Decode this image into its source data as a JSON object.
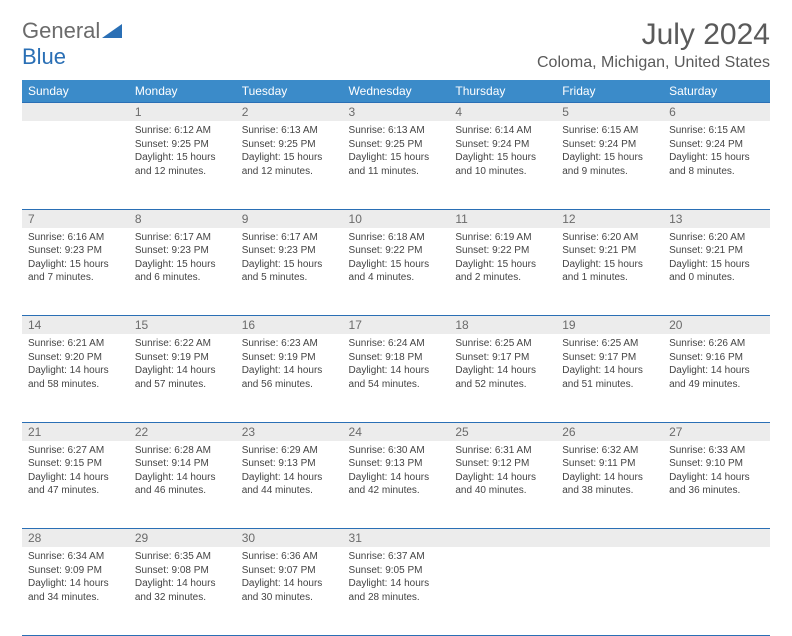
{
  "logo": {
    "gray": "General",
    "blue": "Blue"
  },
  "title": "July 2024",
  "location": "Coloma, Michigan, United States",
  "colors": {
    "header_bg": "#3b8bc9",
    "border": "#2a6fb5",
    "daynum_bg": "#ececec",
    "text": "#444444"
  },
  "day_headers": [
    "Sunday",
    "Monday",
    "Tuesday",
    "Wednesday",
    "Thursday",
    "Friday",
    "Saturday"
  ],
  "weeks": [
    {
      "nums": [
        "",
        "1",
        "2",
        "3",
        "4",
        "5",
        "6"
      ],
      "cells": [
        null,
        {
          "sunrise": "6:12 AM",
          "sunset": "9:25 PM",
          "dl_h": 15,
          "dl_m": 12
        },
        {
          "sunrise": "6:13 AM",
          "sunset": "9:25 PM",
          "dl_h": 15,
          "dl_m": 12
        },
        {
          "sunrise": "6:13 AM",
          "sunset": "9:25 PM",
          "dl_h": 15,
          "dl_m": 11
        },
        {
          "sunrise": "6:14 AM",
          "sunset": "9:24 PM",
          "dl_h": 15,
          "dl_m": 10
        },
        {
          "sunrise": "6:15 AM",
          "sunset": "9:24 PM",
          "dl_h": 15,
          "dl_m": 9
        },
        {
          "sunrise": "6:15 AM",
          "sunset": "9:24 PM",
          "dl_h": 15,
          "dl_m": 8
        }
      ]
    },
    {
      "nums": [
        "7",
        "8",
        "9",
        "10",
        "11",
        "12",
        "13"
      ],
      "cells": [
        {
          "sunrise": "6:16 AM",
          "sunset": "9:23 PM",
          "dl_h": 15,
          "dl_m": 7
        },
        {
          "sunrise": "6:17 AM",
          "sunset": "9:23 PM",
          "dl_h": 15,
          "dl_m": 6
        },
        {
          "sunrise": "6:17 AM",
          "sunset": "9:23 PM",
          "dl_h": 15,
          "dl_m": 5
        },
        {
          "sunrise": "6:18 AM",
          "sunset": "9:22 PM",
          "dl_h": 15,
          "dl_m": 4
        },
        {
          "sunrise": "6:19 AM",
          "sunset": "9:22 PM",
          "dl_h": 15,
          "dl_m": 2
        },
        {
          "sunrise": "6:20 AM",
          "sunset": "9:21 PM",
          "dl_h": 15,
          "dl_m": 1
        },
        {
          "sunrise": "6:20 AM",
          "sunset": "9:21 PM",
          "dl_h": 15,
          "dl_m": 0
        }
      ]
    },
    {
      "nums": [
        "14",
        "15",
        "16",
        "17",
        "18",
        "19",
        "20"
      ],
      "cells": [
        {
          "sunrise": "6:21 AM",
          "sunset": "9:20 PM",
          "dl_h": 14,
          "dl_m": 58
        },
        {
          "sunrise": "6:22 AM",
          "sunset": "9:19 PM",
          "dl_h": 14,
          "dl_m": 57
        },
        {
          "sunrise": "6:23 AM",
          "sunset": "9:19 PM",
          "dl_h": 14,
          "dl_m": 56
        },
        {
          "sunrise": "6:24 AM",
          "sunset": "9:18 PM",
          "dl_h": 14,
          "dl_m": 54
        },
        {
          "sunrise": "6:25 AM",
          "sunset": "9:17 PM",
          "dl_h": 14,
          "dl_m": 52
        },
        {
          "sunrise": "6:25 AM",
          "sunset": "9:17 PM",
          "dl_h": 14,
          "dl_m": 51
        },
        {
          "sunrise": "6:26 AM",
          "sunset": "9:16 PM",
          "dl_h": 14,
          "dl_m": 49
        }
      ]
    },
    {
      "nums": [
        "21",
        "22",
        "23",
        "24",
        "25",
        "26",
        "27"
      ],
      "cells": [
        {
          "sunrise": "6:27 AM",
          "sunset": "9:15 PM",
          "dl_h": 14,
          "dl_m": 47
        },
        {
          "sunrise": "6:28 AM",
          "sunset": "9:14 PM",
          "dl_h": 14,
          "dl_m": 46
        },
        {
          "sunrise": "6:29 AM",
          "sunset": "9:13 PM",
          "dl_h": 14,
          "dl_m": 44
        },
        {
          "sunrise": "6:30 AM",
          "sunset": "9:13 PM",
          "dl_h": 14,
          "dl_m": 42
        },
        {
          "sunrise": "6:31 AM",
          "sunset": "9:12 PM",
          "dl_h": 14,
          "dl_m": 40
        },
        {
          "sunrise": "6:32 AM",
          "sunset": "9:11 PM",
          "dl_h": 14,
          "dl_m": 38
        },
        {
          "sunrise": "6:33 AM",
          "sunset": "9:10 PM",
          "dl_h": 14,
          "dl_m": 36
        }
      ]
    },
    {
      "nums": [
        "28",
        "29",
        "30",
        "31",
        "",
        "",
        ""
      ],
      "cells": [
        {
          "sunrise": "6:34 AM",
          "sunset": "9:09 PM",
          "dl_h": 14,
          "dl_m": 34
        },
        {
          "sunrise": "6:35 AM",
          "sunset": "9:08 PM",
          "dl_h": 14,
          "dl_m": 32
        },
        {
          "sunrise": "6:36 AM",
          "sunset": "9:07 PM",
          "dl_h": 14,
          "dl_m": 30
        },
        {
          "sunrise": "6:37 AM",
          "sunset": "9:05 PM",
          "dl_h": 14,
          "dl_m": 28
        },
        null,
        null,
        null
      ]
    }
  ]
}
